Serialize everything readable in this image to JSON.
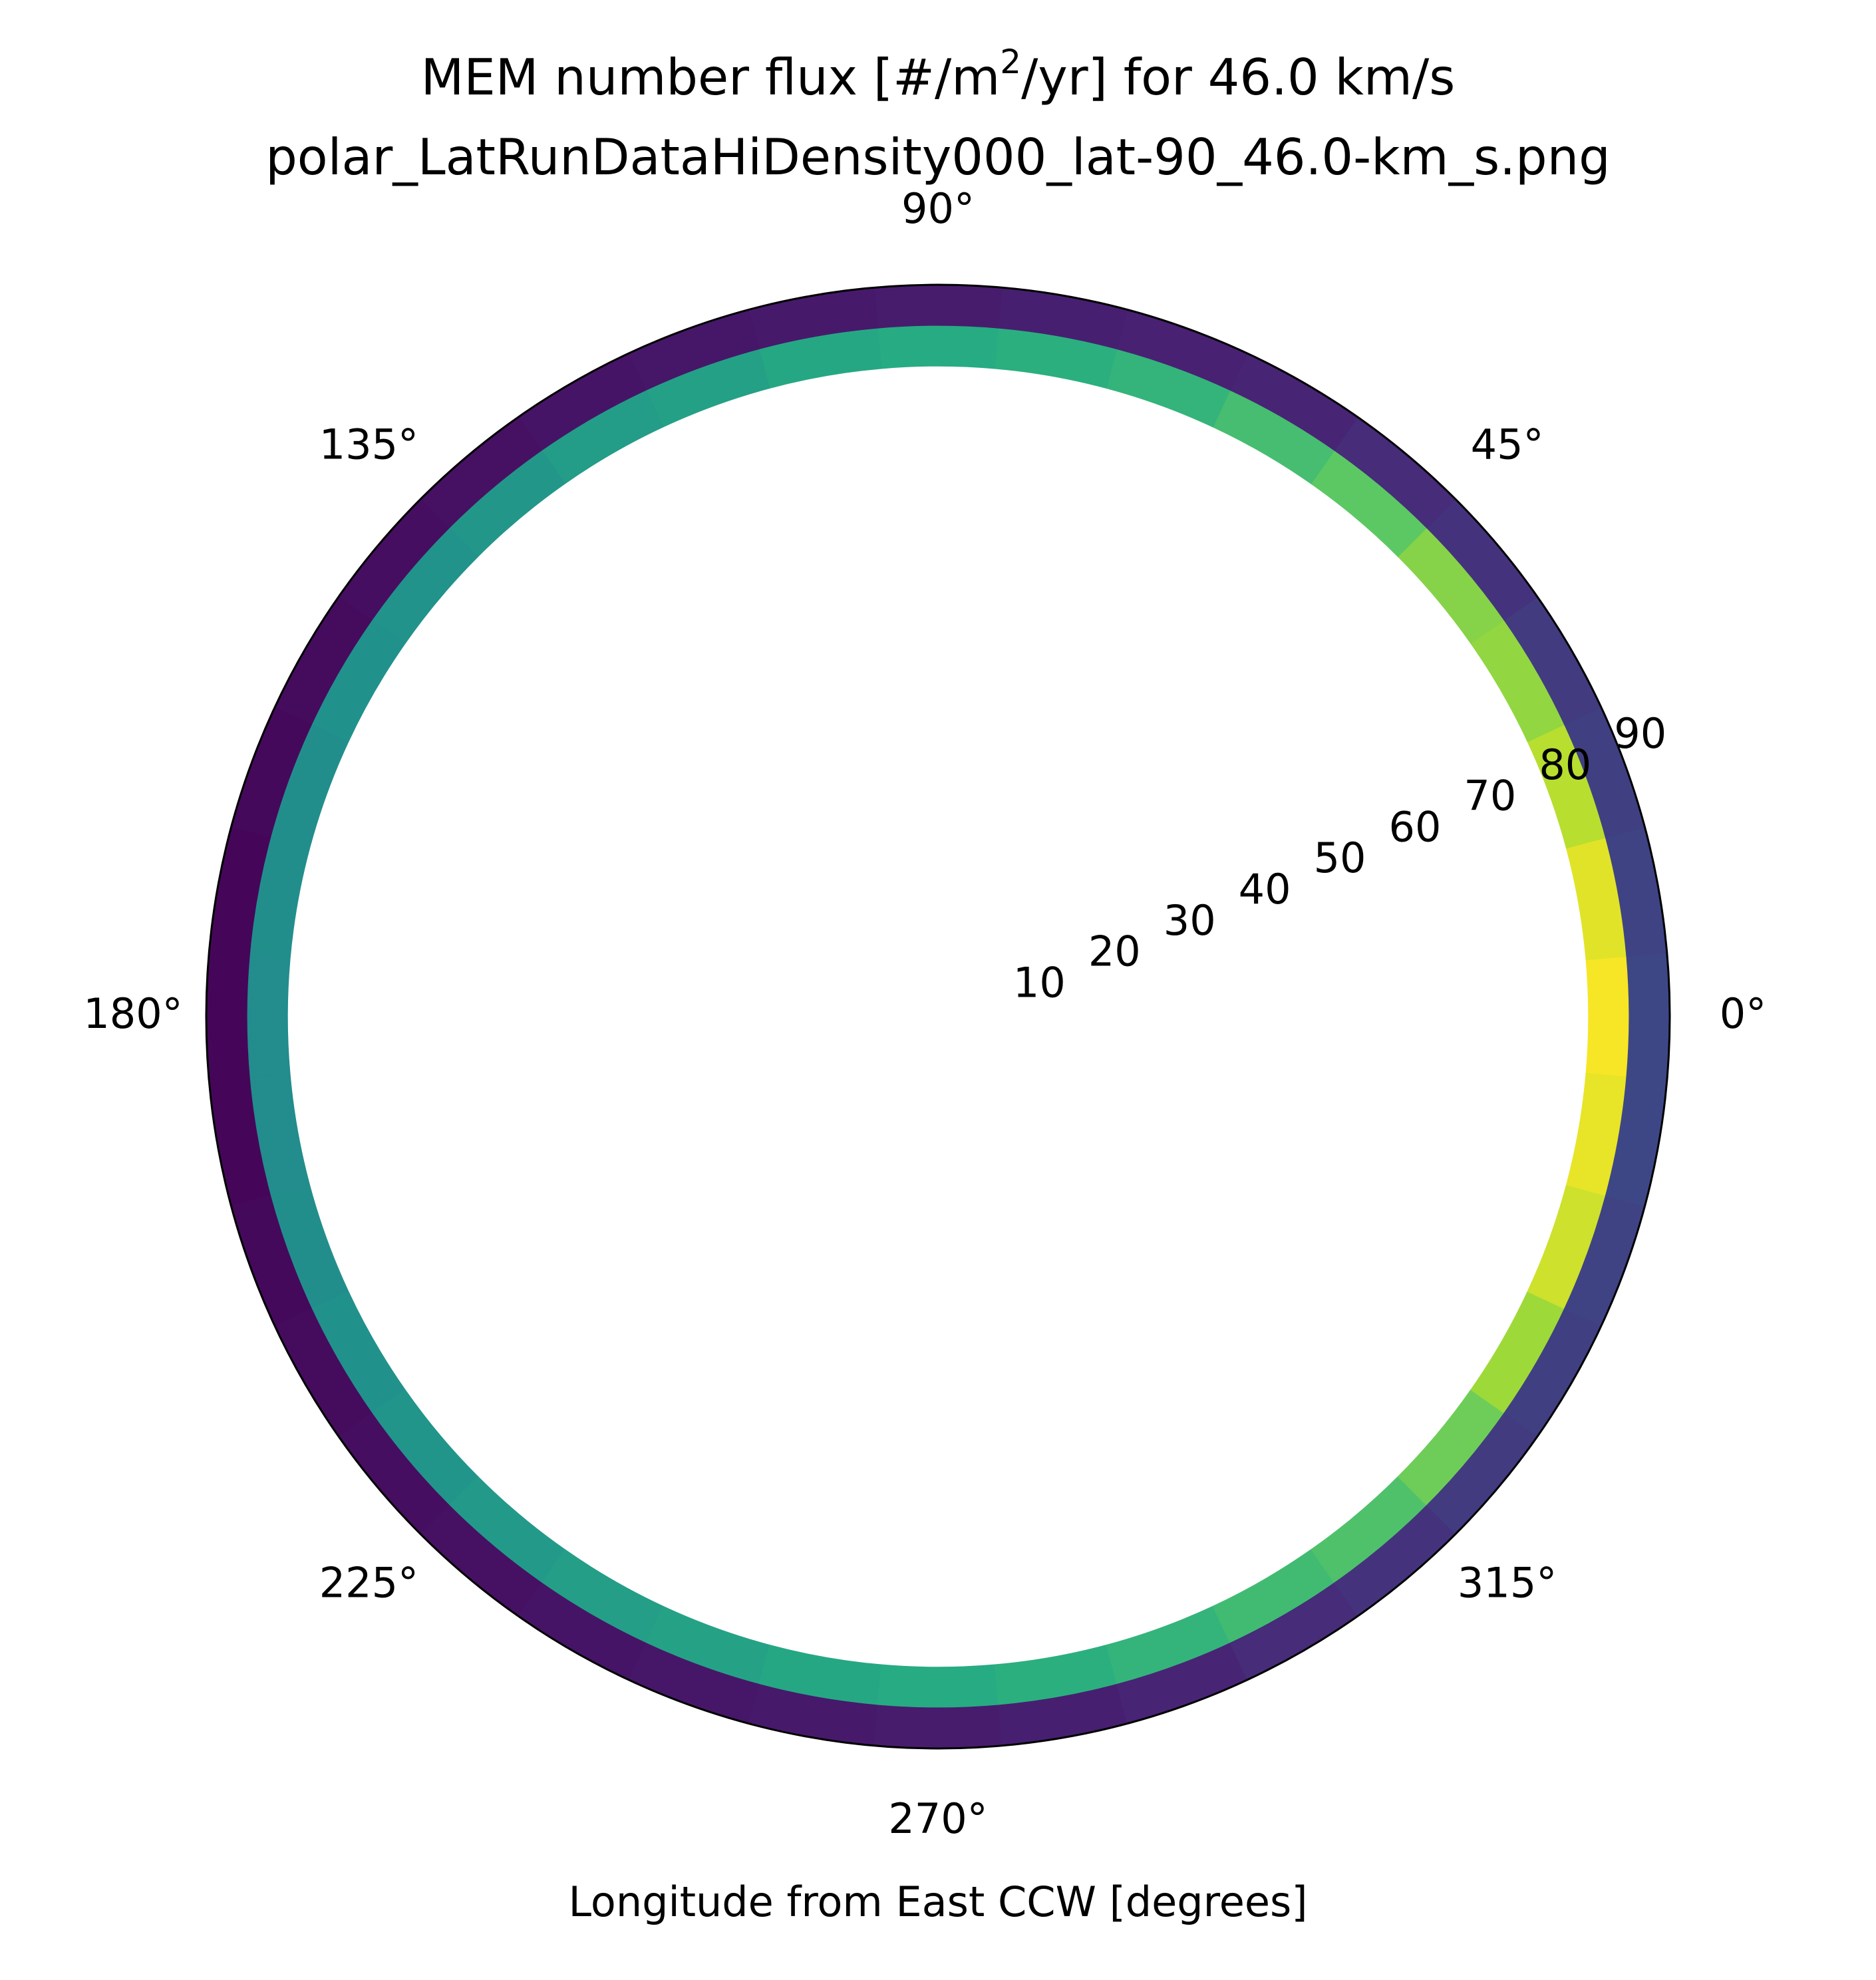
{
  "chart_data": {
    "type": "polar_heatmap",
    "title_line1_prefix": "MEM number flux [#/m",
    "title_line1_superscript": "2",
    "title_line1_suffix": "/yr] for 46.0 km/s",
    "title_line2": "polar_LatRunDataHiDensity000_lat-90_46.0-km_s.png",
    "xlabel": "Longitude from East CCW [degrees]",
    "angular_ticks": [
      {
        "angle": 0,
        "label": "0°"
      },
      {
        "angle": 45,
        "label": "45°"
      },
      {
        "angle": 90,
        "label": "90°"
      },
      {
        "angle": 135,
        "label": "135°"
      },
      {
        "angle": 180,
        "label": "180°"
      },
      {
        "angle": 225,
        "label": "225°"
      },
      {
        "angle": 270,
        "label": "270°"
      },
      {
        "angle": 315,
        "label": "315°"
      }
    ],
    "radial_ticks": [
      "10",
      "20",
      "30",
      "40",
      "50",
      "60",
      "70",
      "80",
      "90"
    ],
    "radial_range": [
      0,
      90
    ],
    "colormap": "viridis",
    "grid": false,
    "rings": [
      {
        "r_range": [
          80,
          85
        ],
        "longitudes": [
          0,
          10,
          20,
          30,
          40,
          50,
          60,
          70,
          80,
          90,
          100,
          110,
          120,
          130,
          140,
          150,
          160,
          170,
          180,
          190,
          200,
          210,
          220,
          230,
          240,
          250,
          260,
          270,
          280,
          290,
          300,
          310,
          320,
          330,
          340,
          350
        ],
        "normalized_values": [
          0.99,
          0.96,
          0.9,
          0.84,
          0.82,
          0.75,
          0.7,
          0.66,
          0.64,
          0.62,
          0.6,
          0.57,
          0.55,
          0.53,
          0.51,
          0.5,
          0.49,
          0.49,
          0.48,
          0.48,
          0.49,
          0.5,
          0.52,
          0.54,
          0.56,
          0.58,
          0.6,
          0.62,
          0.64,
          0.66,
          0.69,
          0.72,
          0.78,
          0.86,
          0.93,
          0.97
        ]
      },
      {
        "r_range": [
          85,
          90
        ],
        "longitudes": [
          0,
          10,
          20,
          30,
          40,
          50,
          60,
          70,
          80,
          90,
          100,
          110,
          120,
          130,
          140,
          150,
          160,
          170,
          180,
          190,
          200,
          210,
          220,
          230,
          240,
          250,
          260,
          270,
          280,
          290,
          300,
          310,
          320,
          330,
          340,
          350
        ],
        "normalized_values": [
          0.22,
          0.21,
          0.2,
          0.19,
          0.17,
          0.15,
          0.13,
          0.12,
          0.11,
          0.1,
          0.09,
          0.08,
          0.07,
          0.06,
          0.05,
          0.04,
          0.03,
          0.02,
          0.02,
          0.02,
          0.03,
          0.04,
          0.05,
          0.06,
          0.07,
          0.08,
          0.09,
          0.1,
          0.11,
          0.13,
          0.15,
          0.17,
          0.19,
          0.2,
          0.21,
          0.22
        ]
      }
    ]
  }
}
